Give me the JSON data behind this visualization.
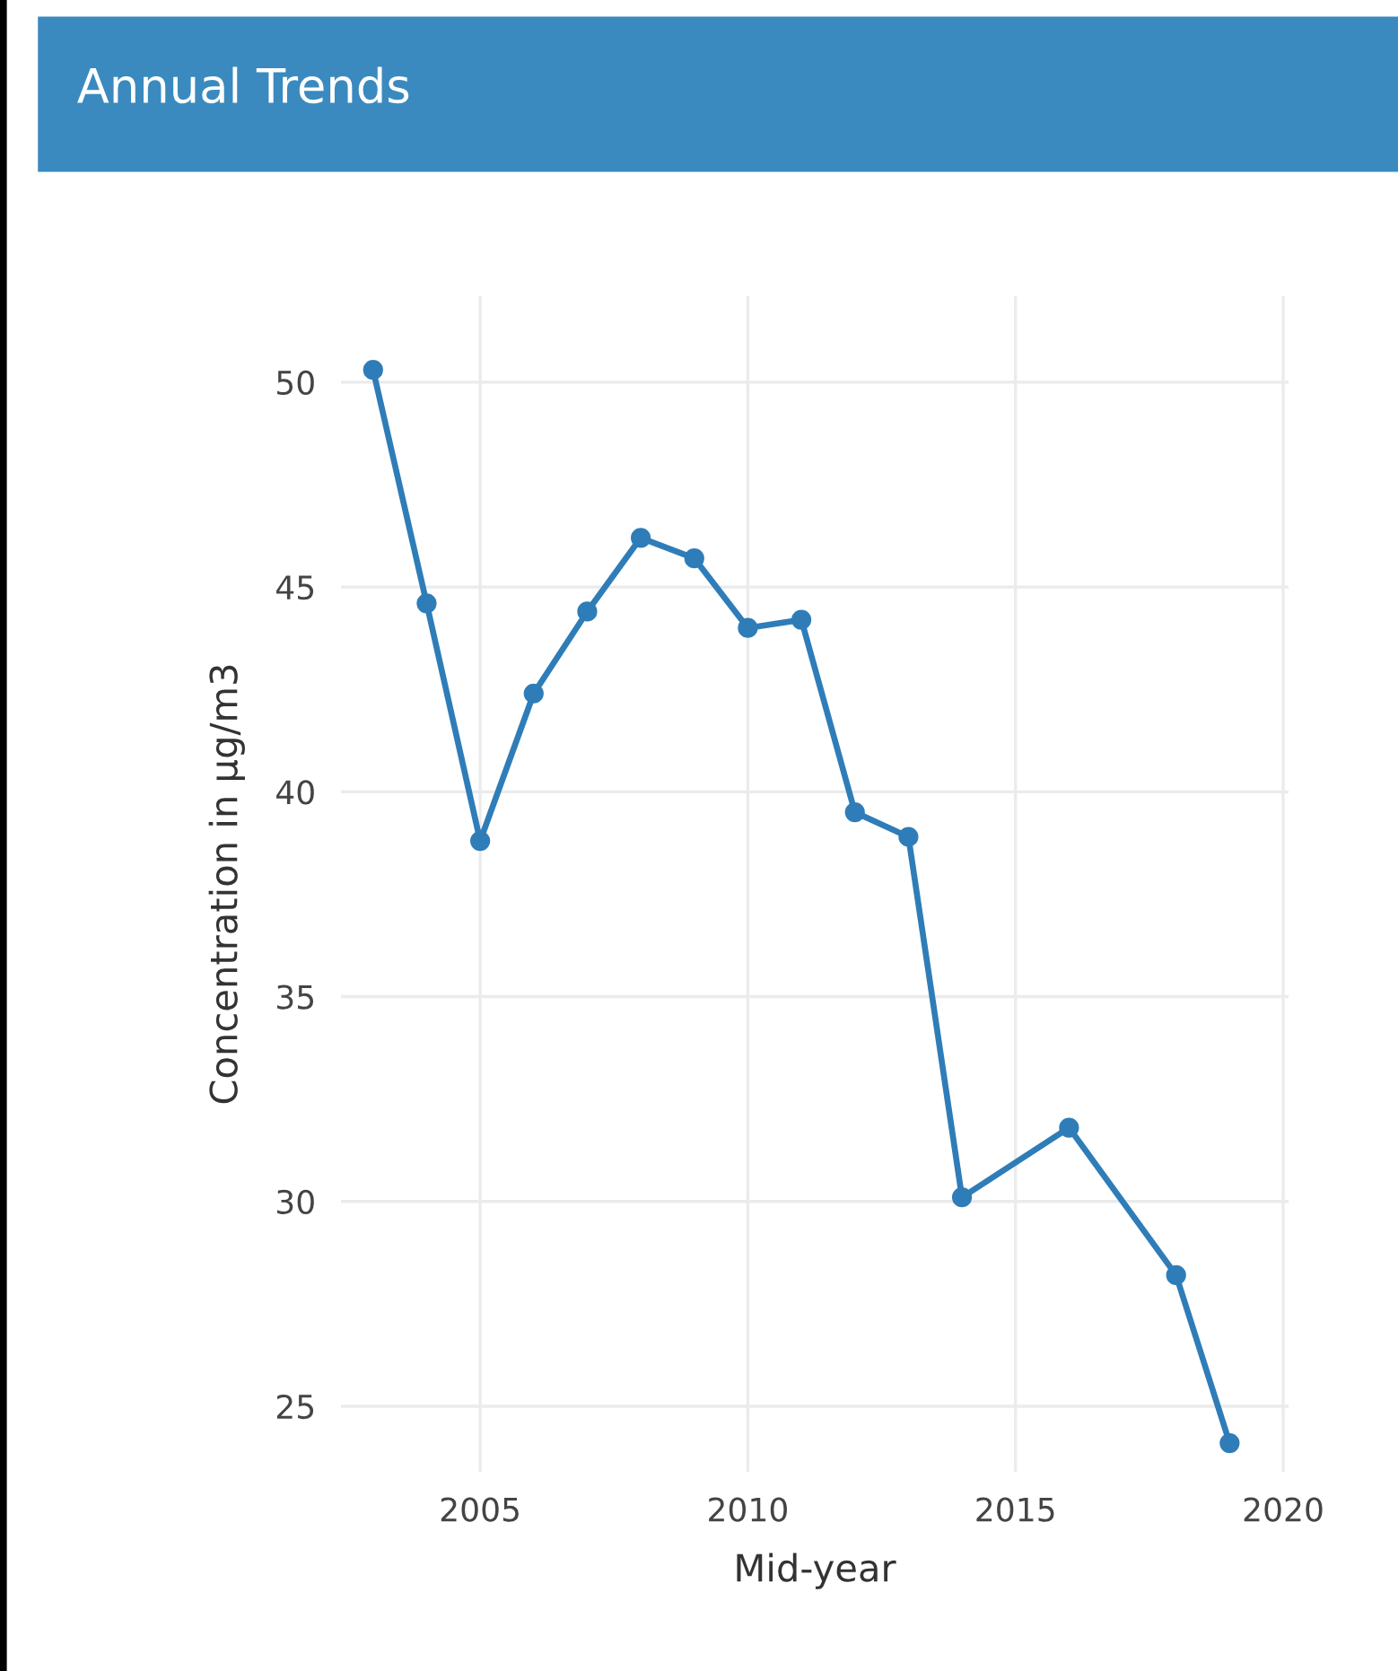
{
  "chart_data": {
    "type": "line",
    "title": "Annual Trends",
    "xlabel": "Mid-year",
    "ylabel": "Concentration in µg/m3",
    "x": [
      2003,
      2004,
      2005,
      2006,
      2007,
      2008,
      2009,
      2010,
      2011,
      2012,
      2013,
      2014,
      2016,
      2018,
      2019
    ],
    "series": [
      {
        "color": "#2f7db8",
        "values": [
          50.3,
          44.6,
          38.8,
          42.4,
          44.4,
          46.2,
          45.7,
          44.0,
          44.2,
          39.5,
          38.9,
          30.1,
          31.8,
          28.2,
          24.1
        ]
      }
    ],
    "xlim": [
      2002.4,
      2020.1
    ],
    "xticks": [
      2005,
      2010,
      2015,
      2020
    ],
    "ylim": [
      23.4,
      52.1
    ],
    "yticks": [
      25,
      30,
      35,
      40,
      45,
      50
    ],
    "grid": true,
    "marker": "circle",
    "line_style": "solid"
  }
}
